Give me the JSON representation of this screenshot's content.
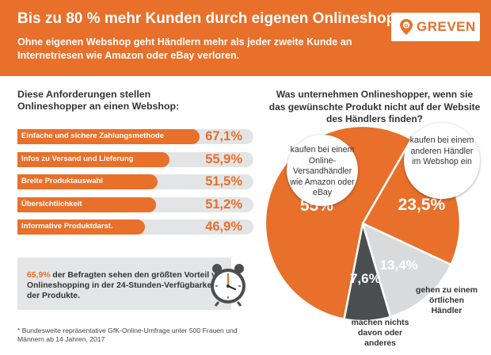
{
  "header": {
    "title": "Bis zu 80 % mehr Kunden durch eigenen Onlineshop",
    "subtitle": "Ohne eigenen Webshop geht Händlern mehr als jeder zweite Kunde an Internetriesen wie Amazon oder eBay verloren.",
    "logo_text": "GREVEN",
    "logo_icon": "map-pin-icon"
  },
  "colors": {
    "accent": "#e8702a",
    "bar_track": "#e3e4e6",
    "light_slice": "#d9dadc",
    "dark_slice": "#4a4e51"
  },
  "chart_data": [
    {
      "type": "bar",
      "title": "Diese Anforderungen stellen Onlineshopper an einen Webshop:",
      "categories": [
        "Einfache und sichere Zahlungsmethode",
        "Infos zu Versand und Lieferung",
        "Breite Produktauswahl",
        "Übersichtlichkeit",
        "Informative Produktdarst."
      ],
      "values": [
        67.1,
        55.9,
        51.5,
        51.2,
        46.9
      ],
      "value_labels": [
        "67,1%",
        "55,9%",
        "51,5%",
        "51,2%",
        "46,9%"
      ],
      "unit": "%",
      "xlim": [
        0,
        100
      ]
    },
    {
      "type": "pie",
      "title": "Was unternehmen Onlineshopper, wenn sie das gewünschte Produkt nicht auf der Website des Händlers finden?",
      "categories": [
        "kaufen bei einem anderen Händler im Webshop ein",
        "gehen zu einem örtlichen Händler",
        "machen nichts davon oder anderes",
        "kaufen bei einem Online-Versandhändler wie Amazon oder eBay"
      ],
      "values": [
        23.5,
        13.4,
        7.6,
        55
      ],
      "value_labels": [
        "23,5%",
        "13,4%",
        "7,6%",
        "55%"
      ]
    }
  ],
  "callout": {
    "highlight": "65,9%",
    "text": " der Befragten sehen den größten Vorteil von Onlineshopping in der 24-Stunden-Verfügbarkeit der Produkte.",
    "icon": "clock-icon"
  },
  "footnote": "* Bundesweite repräsentative GfK-Online-Umfrage unter 500 Frauen und Männern ab 14 Jahren, 2017"
}
